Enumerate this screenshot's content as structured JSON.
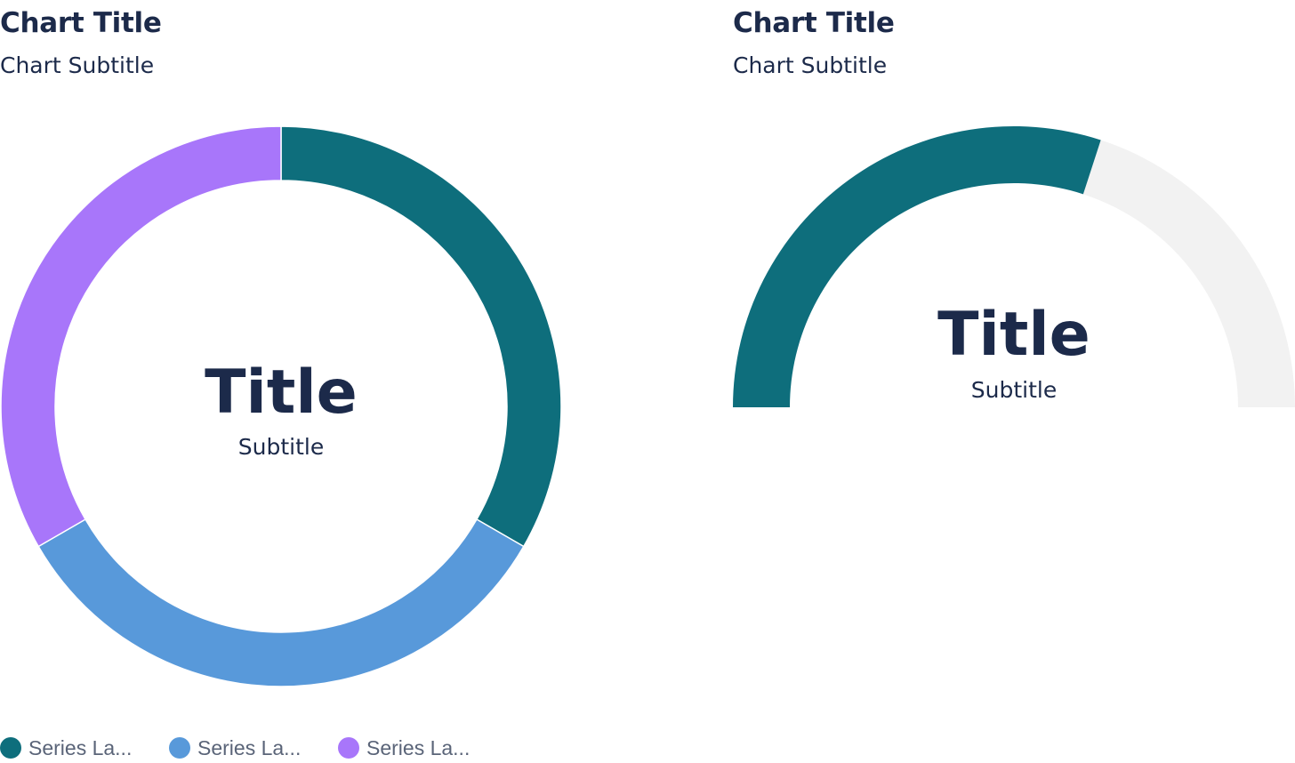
{
  "colors": {
    "text_dark": "#1c2a4a",
    "legend_text": "#5a6478",
    "track": "#f2f2f2"
  },
  "chart_data": [
    {
      "type": "pie",
      "variant": "donut",
      "title": "Chart Title",
      "subtitle": "Chart Subtitle",
      "center_title": "Title",
      "center_subtitle": "Subtitle",
      "series": [
        {
          "name": "Series La...",
          "value": 1,
          "color": "#0e6e7c"
        },
        {
          "name": "Series La...",
          "value": 1,
          "color": "#5899da"
        },
        {
          "name": "Series La...",
          "value": 1,
          "color": "#a876fa"
        }
      ],
      "legend": "bottom-left"
    },
    {
      "type": "pie",
      "variant": "semi-donut-gauge",
      "title": "Chart Title",
      "subtitle": "Chart Subtitle",
      "center_title": "Title",
      "center_subtitle": "Subtitle",
      "value": 0.6,
      "value_color": "#0e6e7c",
      "track_color": "#f2f2f2"
    }
  ]
}
